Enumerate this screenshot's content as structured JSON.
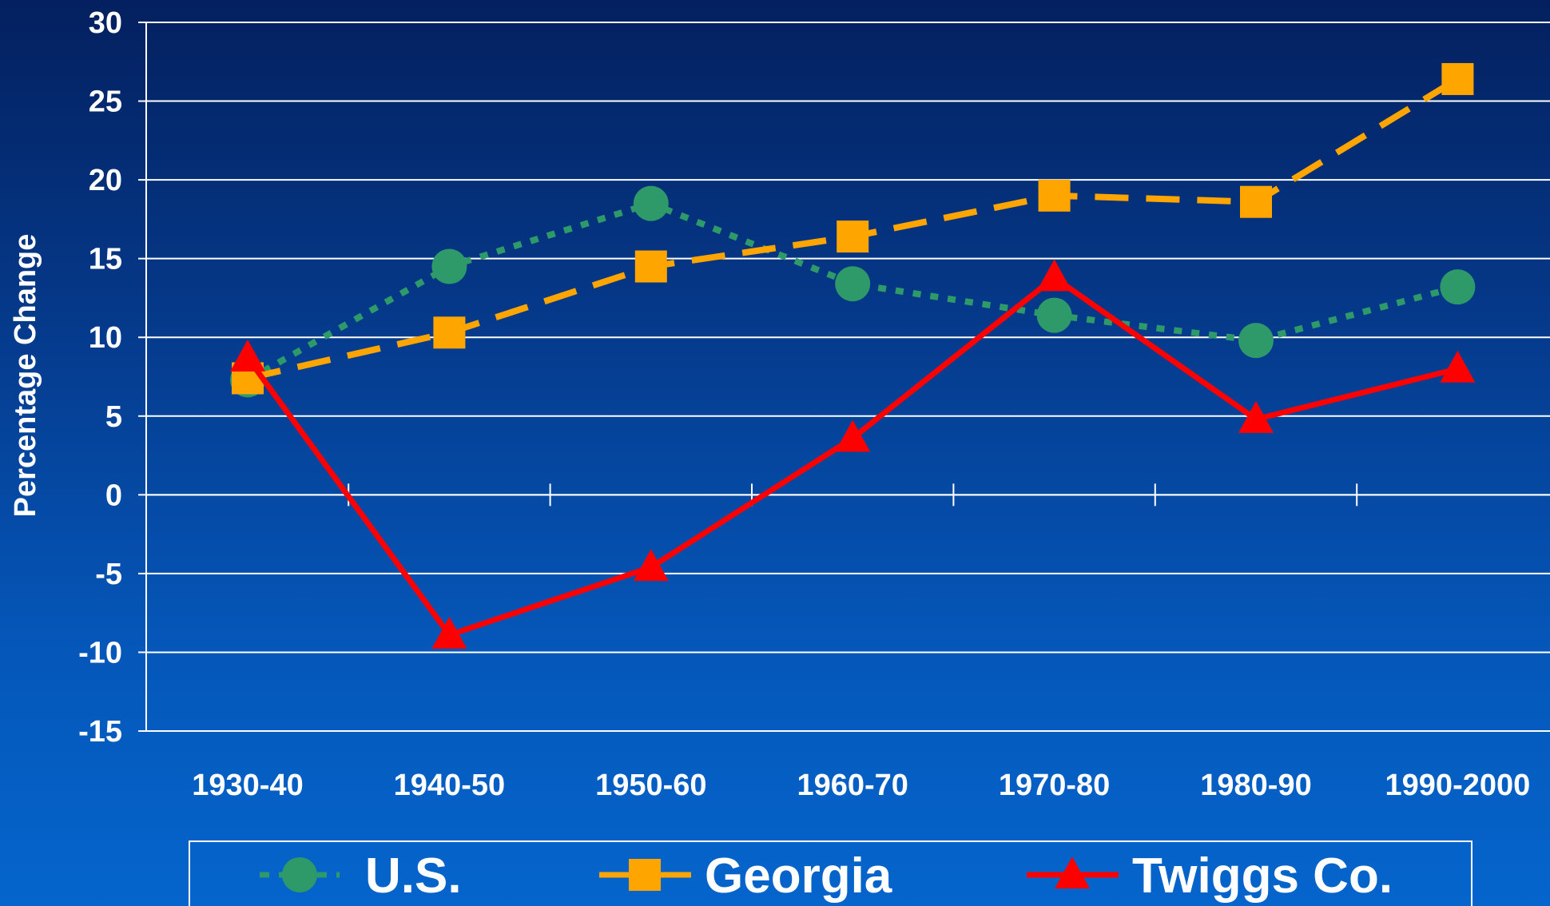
{
  "chart_data": {
    "type": "line",
    "categories": [
      "1930-40",
      "1940-50",
      "1950-60",
      "1960-70",
      "1970-80",
      "1980-90",
      "1990-2000"
    ],
    "series": [
      {
        "name": "U.S.",
        "values": [
          7.3,
          14.5,
          18.5,
          13.4,
          11.4,
          9.8,
          13.2
        ],
        "color": "#2e9a6a",
        "marker": "circle",
        "dash": "dotted"
      },
      {
        "name": "Georgia",
        "values": [
          7.4,
          10.3,
          14.5,
          16.4,
          19.0,
          18.6,
          26.4
        ],
        "color": "#ffa500",
        "marker": "square",
        "dash": "dashed"
      },
      {
        "name": "Twiggs Co.",
        "values": [
          8.7,
          -8.9,
          -4.6,
          3.6,
          13.8,
          4.8,
          8.0
        ],
        "color": "#ff0000",
        "marker": "triangle",
        "dash": "solid"
      }
    ],
    "ylabel": "Percentage Change",
    "xlabel": "",
    "ylim": [
      -15,
      30
    ],
    "yticks": [
      "30",
      "25",
      "20",
      "15",
      "10",
      "5",
      "0",
      "-5",
      "-10",
      "-15"
    ],
    "grid": true,
    "legend_position": "bottom"
  }
}
